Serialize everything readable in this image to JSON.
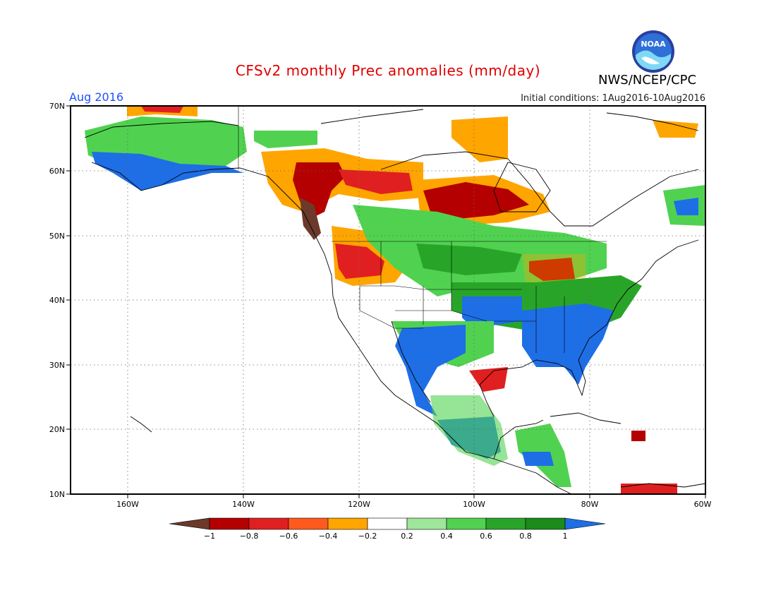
{
  "header": {
    "title": "CFSv2 monthly Prec anomalies (mm/day)",
    "agency": "NWS/NCEP/CPC",
    "month": "Aug 2016",
    "initial_conditions": "Initial conditions: 1Aug2016-10Aug2016",
    "logo_text": "NOAA"
  },
  "map": {
    "lat_labels": [
      "70N",
      "60N",
      "50N",
      "40N",
      "30N",
      "20N",
      "10N"
    ],
    "lon_labels": [
      "160W",
      "140W",
      "120W",
      "100W",
      "80W",
      "60W"
    ],
    "lat_range": [
      10,
      70
    ],
    "lon_range": [
      -171,
      -60
    ]
  },
  "legend": {
    "ticks": [
      "−1",
      "−0.8",
      "−0.6",
      "−0.4",
      "−0.2",
      "0.2",
      "0.4",
      "0.6",
      "0.8",
      "1"
    ],
    "colors": [
      "#6b3a2a",
      "#b40000",
      "#e02020",
      "#ff5a1e",
      "#ffa500",
      "#ffffff",
      "#9ee69a",
      "#50d250",
      "#28a528",
      "#198c19",
      "#1e6ee6"
    ]
  },
  "anomaly_regions": [
    {
      "name": "alaska-wet",
      "color": "#1e6ee6"
    },
    {
      "name": "southeast-us-wet",
      "color": "#1e6ee6"
    },
    {
      "name": "mexico-wet",
      "color": "#1e6ee6"
    },
    {
      "name": "central-canada-dry",
      "color": "#b40000"
    },
    {
      "name": "pacific-northwest-dry",
      "color": "#ff5a1e"
    },
    {
      "name": "great-lakes-dry",
      "color": "#b40000"
    }
  ]
}
